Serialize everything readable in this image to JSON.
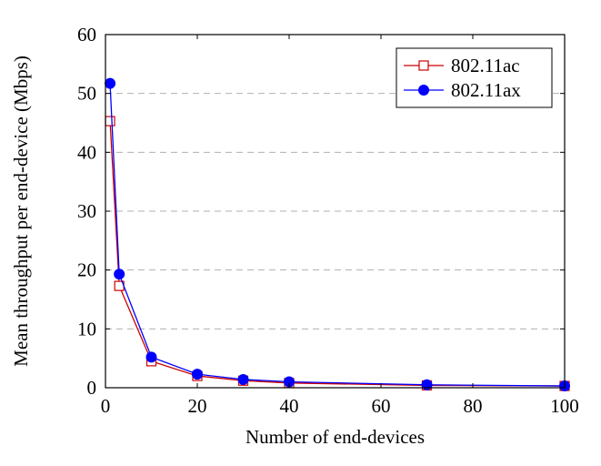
{
  "chart_data": {
    "type": "line",
    "xlabel": "Number of end-devices",
    "ylabel": "Mean throughput per end-device (Mbps)",
    "xlim": [
      0,
      100
    ],
    "ylim": [
      0,
      60
    ],
    "xticks": [
      0,
      20,
      40,
      60,
      80,
      100
    ],
    "yticks": [
      0,
      10,
      20,
      30,
      40,
      50,
      60
    ],
    "grid": "horizontal dashed",
    "legend_position": "top-right",
    "series": [
      {
        "name": "802.11ac",
        "color": "#cc0000",
        "marker": "open-square",
        "x": [
          1,
          3,
          10,
          20,
          30,
          40,
          70,
          100
        ],
        "y": [
          45.3,
          17.3,
          4.5,
          2.0,
          1.2,
          0.8,
          0.4,
          0.3
        ]
      },
      {
        "name": "802.11ax",
        "color": "#0000ff",
        "marker": "filled-circle",
        "x": [
          1,
          3,
          10,
          20,
          30,
          40,
          70,
          100
        ],
        "y": [
          51.7,
          19.3,
          5.2,
          2.3,
          1.4,
          1.0,
          0.5,
          0.3
        ]
      }
    ]
  }
}
